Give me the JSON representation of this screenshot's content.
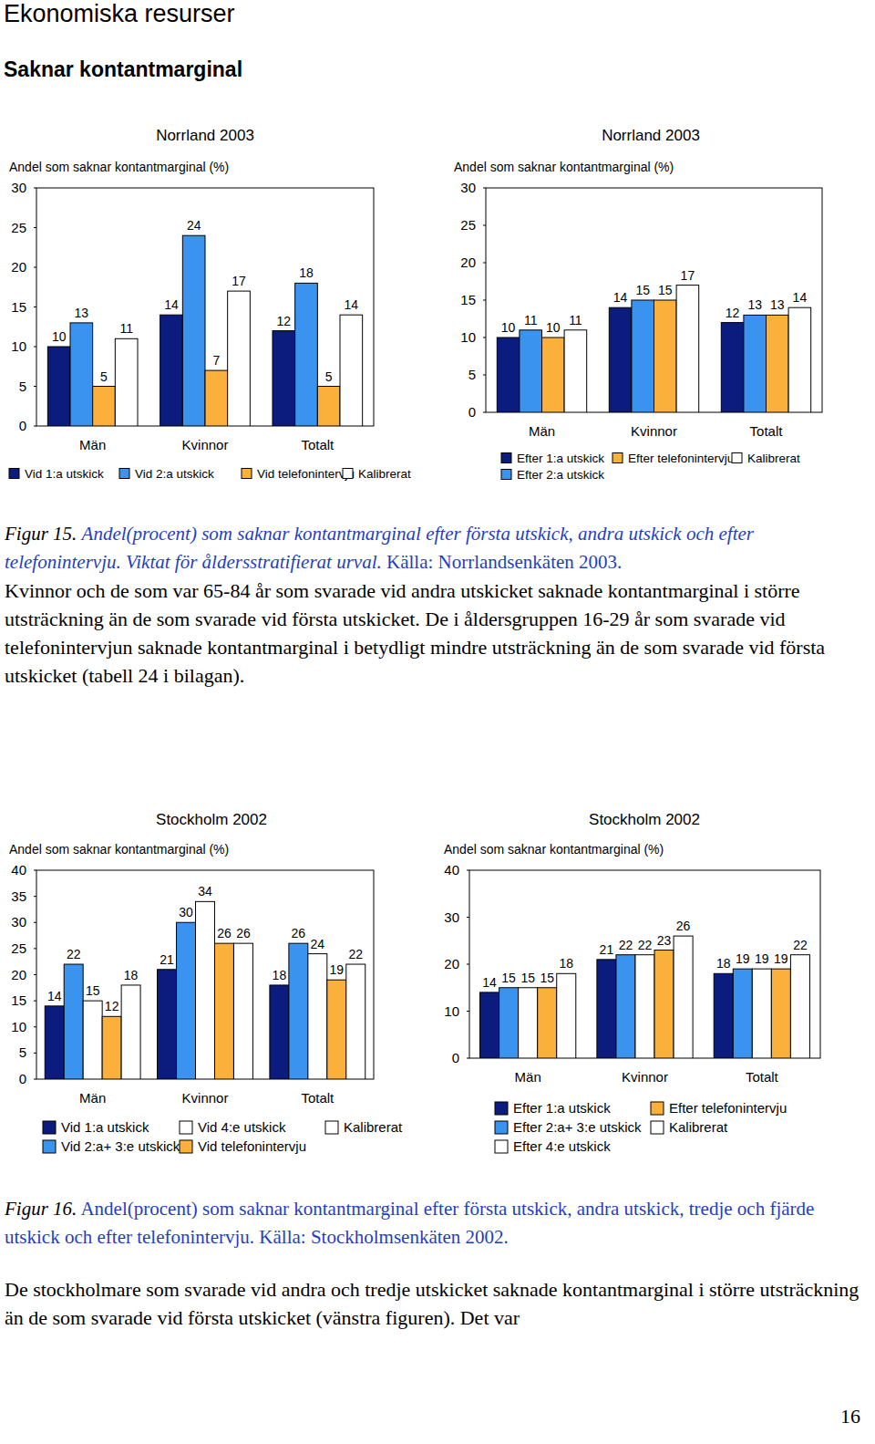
{
  "document": {
    "section": "Ekonomiska resurser",
    "heading": "Saknar kontantmarginal",
    "figure_15_caption": {
      "label": "Figur 15.",
      "text": "Andel(procent) som saknar kontantmarginal efter första utskick, andra utskick och efter telefonintervju. Viktat för åldersstratifierat urval.",
      "source": "Källa: Norrlandsenkäten 2003."
    },
    "paragraph_1": "Kvinnor och de som var 65-84 år som svarade vid andra utskicket saknade kontantmarginal i större utsträckning än de som svarade vid första utskicket. De i åldersgruppen 16-29 år som svarade vid telefonintervjun saknade kontantmarginal i betydligt mindre utsträckning än de som svarade vid första utskicket (tabell 24 i bilagan).",
    "figure_16_caption": {
      "label": "Figur 16.",
      "text": "Andel(procent) som saknar kontantmarginal efter första utskick, andra utskick, tredje och fjärde utskick och efter telefonintervju.",
      "source": "Källa: Stockholmsenkäten 2002."
    },
    "paragraph_2": "De stockholmare som svarade vid andra och tredje utskicket saknade kontantmarginal i större utsträckning än de som svarade vid första utskicket (vänstra figuren). Det var",
    "page_number": "16"
  },
  "chart_data": [
    {
      "type": "bar",
      "title": "Norrland 2003",
      "y_label": "Andel som saknar kontantmarginal (%)",
      "categories": [
        "Män",
        "Kvinnor",
        "Totalt"
      ],
      "series": [
        {
          "name": "Vid 1:a utskick",
          "color": "#0b1c7e",
          "values": [
            10,
            14,
            12
          ]
        },
        {
          "name": "Vid 2:a utskick",
          "color": "#3a93ef",
          "values": [
            13,
            24,
            18
          ]
        },
        {
          "name": "Vid telefonintervju",
          "color": "#fbb03b",
          "values": [
            5,
            7,
            5
          ]
        },
        {
          "name": "Kalibrerat",
          "color": "#ffffff",
          "values": [
            11,
            17,
            14
          ]
        }
      ],
      "ylim": [
        0,
        30
      ],
      "yticks": [
        0,
        5,
        10,
        15,
        20,
        25,
        30
      ],
      "grid": false,
      "data_labels": true,
      "legend": "bottom"
    },
    {
      "type": "bar",
      "title": "Norrland 2003",
      "y_label": "Andel som saknar kontantmarginal (%)",
      "categories": [
        "Män",
        "Kvinnor",
        "Totalt"
      ],
      "series": [
        {
          "name": "Efter 1:a utskick",
          "color": "#0b1c7e",
          "values": [
            10,
            14,
            12
          ]
        },
        {
          "name": "Efter 2:a utskick",
          "color": "#3a93ef",
          "values": [
            11,
            15,
            13
          ]
        },
        {
          "name": "Efter telefonintervju",
          "color": "#fbb03b",
          "values": [
            10,
            15,
            13
          ]
        },
        {
          "name": "Kalibrerat",
          "color": "#ffffff",
          "values": [
            11,
            17,
            14
          ]
        }
      ],
      "ylim": [
        0,
        30
      ],
      "yticks": [
        0,
        5,
        10,
        15,
        20,
        25,
        30
      ],
      "grid": false,
      "data_labels": true,
      "legend": "bottom"
    },
    {
      "type": "bar",
      "title": "Stockholm 2002",
      "y_label": "Andel som saknar kontantmarginal (%)",
      "categories": [
        "Män",
        "Kvinnor",
        "Totalt"
      ],
      "series": [
        {
          "name": "Vid 1:a utskick",
          "color": "#0b1c7e",
          "values": [
            14,
            21,
            18
          ]
        },
        {
          "name": "Vid 2:a+ 3:e utskick",
          "color": "#3a93ef",
          "values": [
            22,
            30,
            26
          ]
        },
        {
          "name": "Vid 4:e utskick",
          "color": "#ffffff",
          "values": [
            15,
            34,
            24
          ]
        },
        {
          "name": "Vid telefonintervju",
          "color": "#fbb03b",
          "values": [
            12,
            26,
            19
          ]
        },
        {
          "name": "Kalibrerat",
          "color": "#ffffff",
          "values": [
            18,
            26,
            22
          ]
        }
      ],
      "ylim": [
        0,
        40
      ],
      "yticks": [
        0,
        5,
        10,
        15,
        20,
        25,
        30,
        35,
        40
      ],
      "grid": false,
      "data_labels": true,
      "legend": "bottom"
    },
    {
      "type": "bar",
      "title": "Stockholm 2002",
      "y_label": "Andel som saknar kontantmarginal (%)",
      "categories": [
        "Män",
        "Kvinnor",
        "Totalt"
      ],
      "series": [
        {
          "name": "Efter 1:a utskick",
          "color": "#0b1c7e",
          "values": [
            14,
            21,
            18
          ]
        },
        {
          "name": "Efter 2:a+ 3:e utskick",
          "color": "#3a93ef",
          "values": [
            15,
            22,
            19
          ]
        },
        {
          "name": "Efter 4:e utskick",
          "color": "#ffffff",
          "values": [
            15,
            22,
            19
          ]
        },
        {
          "name": "Efter telefonintervju",
          "color": "#fbb03b",
          "values": [
            15,
            23,
            19
          ]
        },
        {
          "name": "Kalibrerat",
          "color": "#ffffff",
          "values": [
            18,
            26,
            22
          ]
        }
      ],
      "ylim": [
        0,
        40
      ],
      "yticks": [
        0,
        10,
        20,
        30,
        40
      ],
      "grid": false,
      "data_labels": true,
      "legend": "bottom"
    }
  ]
}
